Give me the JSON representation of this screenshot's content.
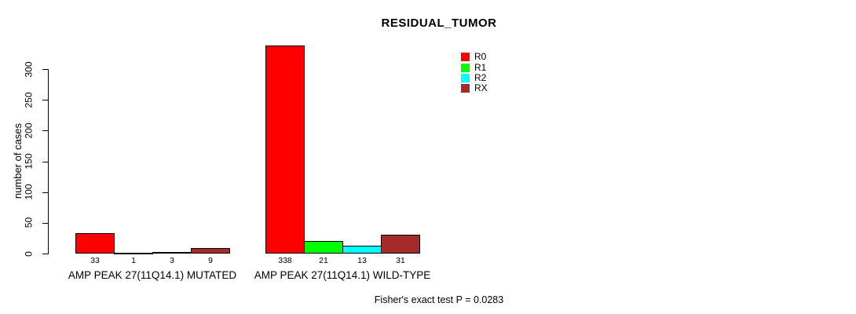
{
  "chart_data": {
    "type": "bar",
    "title": "RESIDUAL_TUMOR",
    "ylabel": "number of cases",
    "xlabel": "",
    "ylim": [
      0,
      300
    ],
    "yticks": [
      0,
      50,
      100,
      150,
      200,
      250,
      300
    ],
    "grid": false,
    "legend_position": "top-right",
    "categories": [
      "AMP PEAK 27(11Q14.1) MUTATED",
      "AMP PEAK 27(11Q14.1) WILD-TYPE"
    ],
    "series": [
      {
        "name": "R0",
        "color": "#ff0000",
        "values": [
          33,
          338
        ]
      },
      {
        "name": "R1",
        "color": "#00ff00",
        "values": [
          1,
          21
        ]
      },
      {
        "name": "R2",
        "color": "#00ffff",
        "values": [
          3,
          13
        ]
      },
      {
        "name": "RX",
        "color": "#a52a2a",
        "values": [
          9,
          31
        ]
      }
    ],
    "footer": "Fisher's exact test P = 0.0283"
  },
  "colors": {
    "axis": "#000000",
    "text": "#000000",
    "background": "#ffffff"
  }
}
